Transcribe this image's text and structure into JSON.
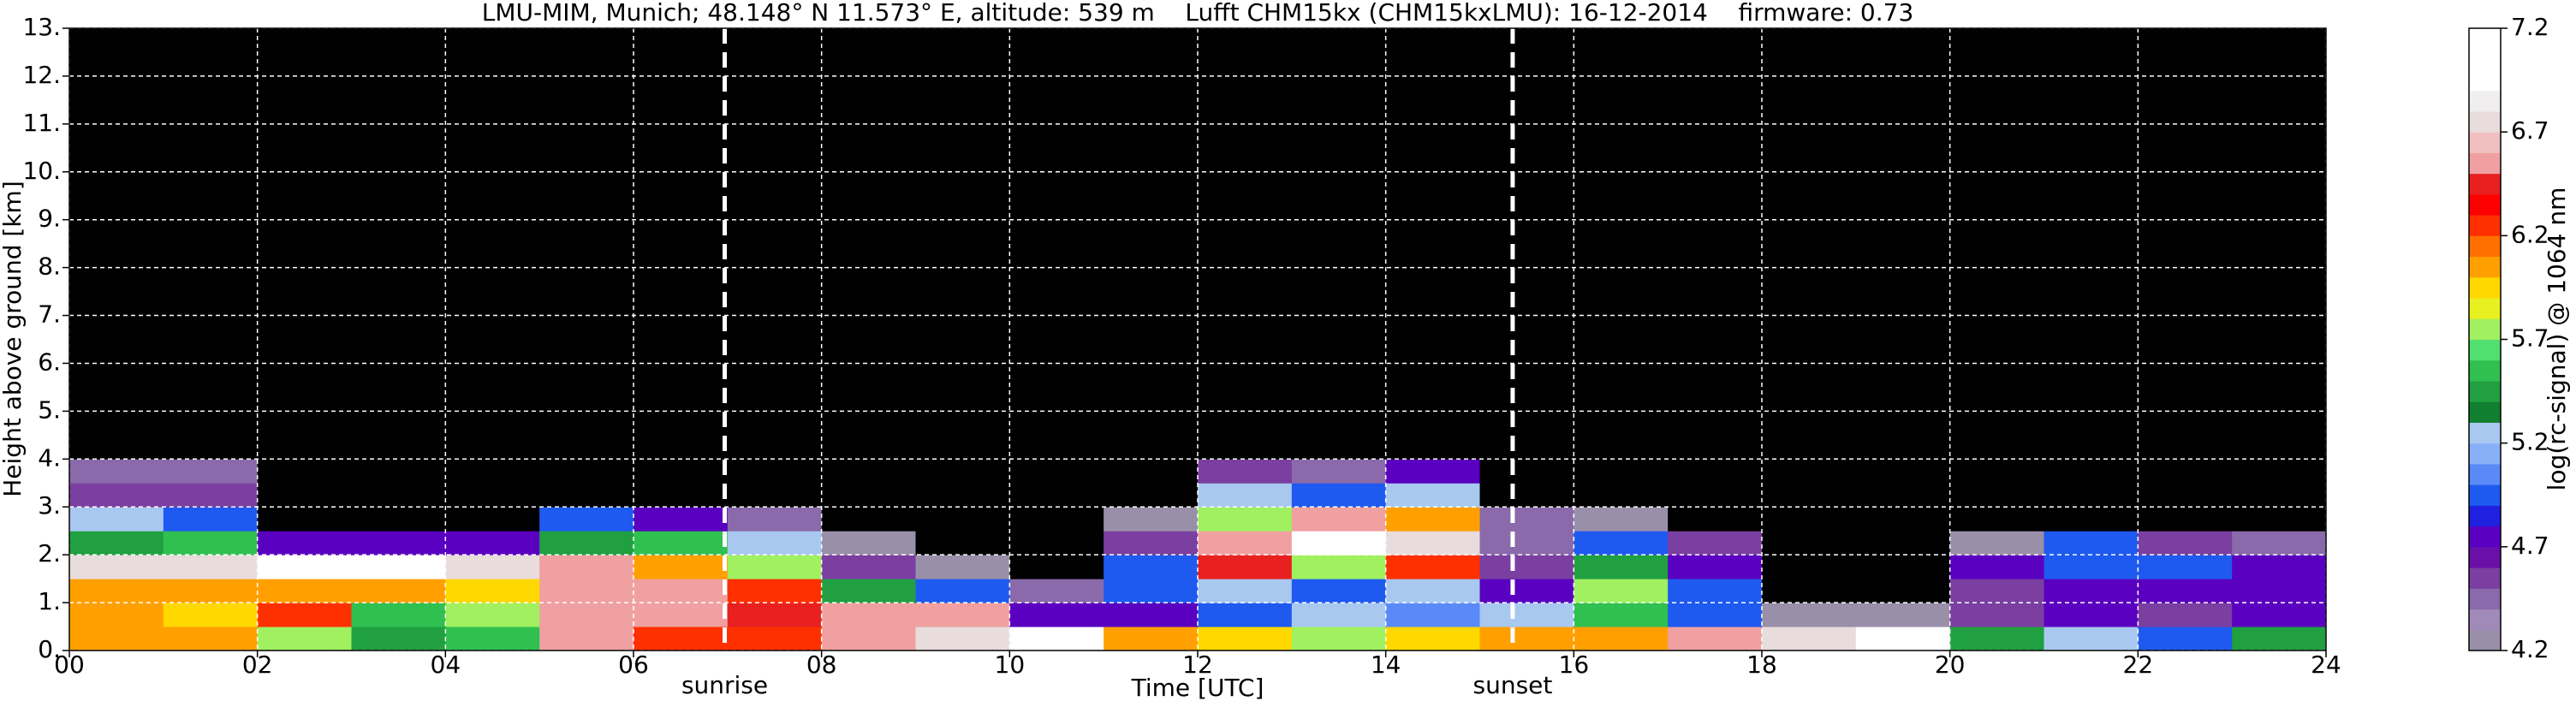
{
  "chart_data": {
    "type": "heatmap",
    "title": "LMU-MIM, Munich; 48.148° N 11.573° E, altitude: 539 m    Lufft CHM15kx (CHM15kxLMU): 16-12-2014    firmware: 0.73",
    "xlabel": "Time [UTC]",
    "ylabel": "Height above ground [km]",
    "xlim": [
      0,
      24
    ],
    "ylim": [
      0,
      13
    ],
    "xticks": [
      {
        "value": 0,
        "label": "00"
      },
      {
        "value": 2,
        "label": "02"
      },
      {
        "value": 4,
        "label": "04"
      },
      {
        "value": 6,
        "label": "06"
      },
      {
        "value": 8,
        "label": "08"
      },
      {
        "value": 10,
        "label": "10"
      },
      {
        "value": 12,
        "label": "12"
      },
      {
        "value": 14,
        "label": "14"
      },
      {
        "value": 16,
        "label": "16"
      },
      {
        "value": 18,
        "label": "18"
      },
      {
        "value": 20,
        "label": "20"
      },
      {
        "value": 22,
        "label": "22"
      },
      {
        "value": 24,
        "label": "24"
      }
    ],
    "yticks": [
      {
        "value": 0,
        "label": "0."
      },
      {
        "value": 1,
        "label": "1."
      },
      {
        "value": 2,
        "label": "2."
      },
      {
        "value": 3,
        "label": "3."
      },
      {
        "value": 4,
        "label": "4."
      },
      {
        "value": 5,
        "label": "5."
      },
      {
        "value": 6,
        "label": "6."
      },
      {
        "value": 7,
        "label": "7."
      },
      {
        "value": 8,
        "label": "8."
      },
      {
        "value": 9,
        "label": "9."
      },
      {
        "value": 10,
        "label": "10."
      },
      {
        "value": 11,
        "label": "11."
      },
      {
        "value": 12,
        "label": "12."
      },
      {
        "value": 13,
        "label": "13."
      }
    ],
    "grid": true,
    "xbins": [
      0,
      1,
      2,
      3,
      4,
      5,
      6,
      7,
      8,
      9,
      10,
      11,
      12,
      13,
      14,
      15,
      16,
      17,
      18,
      19,
      20,
      21,
      22,
      23,
      24
    ],
    "ybins": [
      0,
      0.5,
      1,
      1.5,
      2,
      2.5,
      3,
      3.5,
      4,
      13
    ],
    "z": [
      [
        6.1,
        6.0,
        5.8,
        5.4,
        5.6,
        6.5,
        6.3,
        6.3,
        6.6,
        6.8,
        6.9,
        6.0,
        5.9,
        5.8,
        5.9,
        6.1,
        6.0,
        6.6,
        6.8,
        6.9,
        5.5,
        5.2,
        5.0,
        5.5
      ],
      [
        6.0,
        5.9,
        6.2,
        5.6,
        5.8,
        6.6,
        6.6,
        6.4,
        6.6,
        6.5,
        4.7,
        4.8,
        5.0,
        5.2,
        5.1,
        5.3,
        5.6,
        5.0,
        4.3,
        4.2,
        4.6,
        4.8,
        4.6,
        4.8
      ],
      [
        6.1,
        6.0,
        6.0,
        6.0,
        5.9,
        6.6,
        6.5,
        6.3,
        5.5,
        4.9,
        4.4,
        5.0,
        5.3,
        5.0,
        5.2,
        4.8,
        5.8,
        5.0,
        4.1,
        4.1,
        4.6,
        4.8,
        4.7,
        4.8
      ],
      [
        6.7,
        6.8,
        6.9,
        6.9,
        6.8,
        6.5,
        6.0,
        5.8,
        4.6,
        4.3,
        4.1,
        5.0,
        6.4,
        5.8,
        6.2,
        4.6,
        5.5,
        4.8,
        4.1,
        4.1,
        4.7,
        4.9,
        5.0,
        4.7
      ],
      [
        5.5,
        5.6,
        4.7,
        4.7,
        4.7,
        5.4,
        5.6,
        5.3,
        4.3,
        4.1,
        4.1,
        4.6,
        6.5,
        6.9,
        6.8,
        4.5,
        5.0,
        4.6,
        4.1,
        4.1,
        4.2,
        5.0,
        4.6,
        4.4
      ],
      [
        5.3,
        5.0,
        4.1,
        4.1,
        4.1,
        4.9,
        4.8,
        4.5,
        4.1,
        4.1,
        4.1,
        4.3,
        5.8,
        6.6,
        6.0,
        4.4,
        4.3,
        4.1,
        4.1,
        4.1,
        4.1,
        4.1,
        4.1,
        4.1
      ],
      [
        4.6,
        4.6,
        4.1,
        4.1,
        4.1,
        4.1,
        4.1,
        4.1,
        4.1,
        4.1,
        4.1,
        4.1,
        5.2,
        5.0,
        5.3,
        4.1,
        4.1,
        4.1,
        4.1,
        4.1,
        4.1,
        4.1,
        4.1,
        4.1
      ],
      [
        4.4,
        4.4,
        4.1,
        4.1,
        4.1,
        4.1,
        4.1,
        4.1,
        4.1,
        4.1,
        4.1,
        4.1,
        4.6,
        4.5,
        4.8,
        4.1,
        4.1,
        4.1,
        4.1,
        4.1,
        4.1,
        4.1,
        4.1,
        4.1
      ],
      [
        4.1,
        4.1,
        4.1,
        4.1,
        4.1,
        4.1,
        4.1,
        4.1,
        4.1,
        4.1,
        4.1,
        4.1,
        4.1,
        4.1,
        4.1,
        4.1,
        4.1,
        4.1,
        4.1,
        4.1,
        4.1,
        4.1,
        4.1,
        4.1
      ]
    ],
    "clim": [
      4.2,
      7.2
    ],
    "under_color": "#000000",
    "colors": [
      "#9a8fa8",
      "#a08ab8",
      "#8a6aaa",
      "#7a3fa0",
      "#6a10a8",
      "#5a00c0",
      "#2020e0",
      "#1e5af0",
      "#5a8af8",
      "#88b0f8",
      "#a8c8f0",
      "#108030",
      "#20a040",
      "#30c050",
      "#50e070",
      "#a0f060",
      "#e8f020",
      "#ffd800",
      "#ffa000",
      "#ff7000",
      "#ff3000",
      "#ff0000",
      "#e82020",
      "#f0a0a0",
      "#f0c0c0",
      "#e8dcdc",
      "#f0eeee",
      "#ffffff",
      "#ffffff",
      "#ffffff"
    ],
    "colorbar_label": "log(rc-signal) @ 1064 nm",
    "colorbar_ticks": [
      4.2,
      4.7,
      5.2,
      5.7,
      6.2,
      6.7,
      7.2
    ],
    "annotations": [
      {
        "x": 6.97,
        "label": "sunrise"
      },
      {
        "x": 15.35,
        "label": "sunset"
      }
    ]
  }
}
